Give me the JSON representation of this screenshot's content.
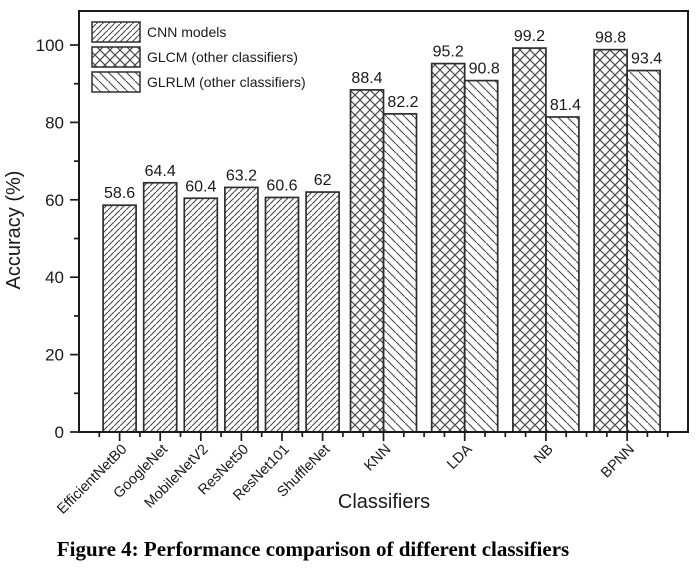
{
  "figure": {
    "caption": "Figure 4: Performance comparison of different classifiers"
  },
  "chart_data": {
    "type": "bar",
    "title": "",
    "xlabel": "Classifiers",
    "ylabel": "Accuracy (%)",
    "ylim": [
      0,
      108
    ],
    "yticks": [
      0,
      20,
      40,
      60,
      80,
      100
    ],
    "y_minor_ticks": [
      10,
      30,
      50,
      70,
      90
    ],
    "grid": false,
    "legend_position": "top-left-inside",
    "categories": [
      "EfficientNetB0",
      "GoogleNet",
      "MobileNetV2",
      "ResNet50",
      "ResNet101",
      "ShuffleNet",
      "KNN",
      "LDA",
      "NB",
      "BPNN"
    ],
    "series": [
      {
        "name": "CNN models",
        "hatch": "diagonal-forward",
        "values": [
          58.6,
          64.4,
          60.4,
          63.2,
          60.6,
          62,
          null,
          null,
          null,
          null
        ]
      },
      {
        "name": "GLCM (other classifiers)",
        "hatch": "crosshatch",
        "values": [
          null,
          null,
          null,
          null,
          null,
          null,
          88.4,
          95.2,
          99.2,
          98.8
        ]
      },
      {
        "name": "GLRLM (other classifiers)",
        "hatch": "diagonal-backward",
        "values": [
          null,
          null,
          null,
          null,
          null,
          null,
          82.2,
          90.8,
          81.4,
          93.4
        ]
      }
    ],
    "bar_labels_shown": true,
    "colors": {
      "ink": "#1a1a1a",
      "hatch": "#4a4a4a",
      "bar_border": "#2e2e2e",
      "background": "#ffffff"
    }
  }
}
